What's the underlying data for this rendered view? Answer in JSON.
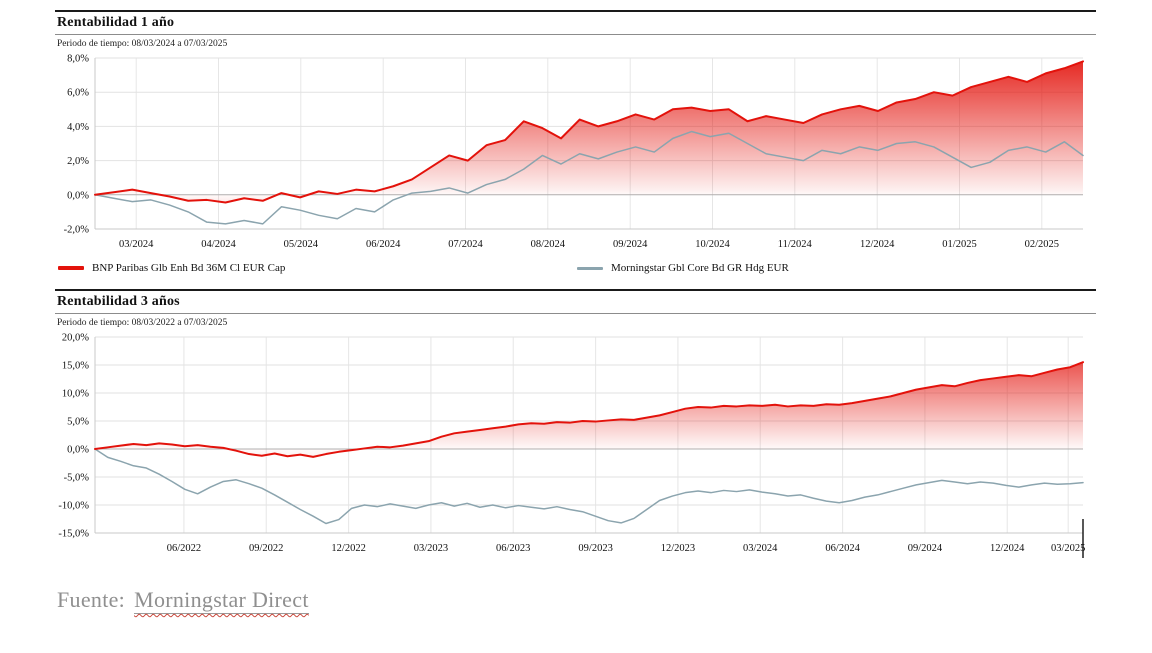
{
  "footer": {
    "prefix": "Fuente:",
    "source": "Morningstar Direct"
  },
  "chart_data": [
    {
      "type": "area",
      "title": "Rentabilidad 1 año",
      "subtitle": "Periodo de tiempo: 08/03/2024 a 07/03/2025",
      "ylim": [
        -2,
        8
      ],
      "grid": true,
      "legend_position": "below",
      "end_marker": false,
      "y_ticks": [
        {
          "v": 8,
          "label": "8,0%"
        },
        {
          "v": 6,
          "label": "6,0%"
        },
        {
          "v": 4,
          "label": "4,0%"
        },
        {
          "v": 2,
          "label": "2,0%"
        },
        {
          "v": 0,
          "label": "0,0%"
        },
        {
          "v": -2,
          "label": "-2,0%"
        }
      ],
      "x_ticks": [
        {
          "f": 0.0417,
          "label": "03/2024"
        },
        {
          "f": 0.125,
          "label": "04/2024"
        },
        {
          "f": 0.2083,
          "label": "05/2024"
        },
        {
          "f": 0.2917,
          "label": "06/2024"
        },
        {
          "f": 0.375,
          "label": "07/2024"
        },
        {
          "f": 0.4583,
          "label": "08/2024"
        },
        {
          "f": 0.5417,
          "label": "09/2024"
        },
        {
          "f": 0.625,
          "label": "10/2024"
        },
        {
          "f": 0.7083,
          "label": "11/2024"
        },
        {
          "f": 0.7917,
          "label": "12/2024"
        },
        {
          "f": 0.875,
          "label": "01/2025"
        },
        {
          "f": 0.9583,
          "label": "02/2025"
        }
      ],
      "series": [
        {
          "name": "BNP Paribas Glb Enh Bd 36M Cl EUR Cap",
          "color": "#e3120b",
          "fill": true,
          "width": 2,
          "values": [
            0.0,
            0.15,
            0.3,
            0.1,
            -0.1,
            -0.35,
            -0.3,
            -0.45,
            -0.2,
            -0.35,
            0.1,
            -0.15,
            0.2,
            0.05,
            0.3,
            0.2,
            0.5,
            0.9,
            1.6,
            2.3,
            2.0,
            2.9,
            3.2,
            4.3,
            3.9,
            3.3,
            4.4,
            4.0,
            4.3,
            4.7,
            4.4,
            5.0,
            5.1,
            4.9,
            5.0,
            4.3,
            4.6,
            4.4,
            4.2,
            4.7,
            5.0,
            5.2,
            4.9,
            5.4,
            5.6,
            6.0,
            5.8,
            6.3,
            6.6,
            6.9,
            6.6,
            7.1,
            7.4,
            7.8
          ]
        },
        {
          "name": "Morningstar Gbl Core Bd GR Hdg EUR",
          "color": "#8ba4ae",
          "fill": false,
          "width": 1.5,
          "values": [
            0.0,
            -0.2,
            -0.4,
            -0.3,
            -0.6,
            -1.0,
            -1.6,
            -1.7,
            -1.5,
            -1.7,
            -0.7,
            -0.9,
            -1.2,
            -1.4,
            -0.8,
            -1.0,
            -0.3,
            0.1,
            0.2,
            0.4,
            0.1,
            0.6,
            0.9,
            1.5,
            2.3,
            1.8,
            2.4,
            2.1,
            2.5,
            2.8,
            2.5,
            3.3,
            3.7,
            3.4,
            3.6,
            3.0,
            2.4,
            2.2,
            2.0,
            2.6,
            2.4,
            2.8,
            2.6,
            3.0,
            3.1,
            2.8,
            2.2,
            1.6,
            1.9,
            2.6,
            2.8,
            2.5,
            3.1,
            2.3
          ]
        }
      ]
    },
    {
      "type": "area",
      "title": "Rentabilidad 3 años",
      "subtitle": "Periodo de tiempo: 08/03/2022 a 07/03/2025",
      "ylim": [
        -15,
        20
      ],
      "grid": true,
      "legend_position": "none",
      "end_marker": true,
      "y_ticks": [
        {
          "v": 20,
          "label": "20,0%"
        },
        {
          "v": 15,
          "label": "15,0%"
        },
        {
          "v": 10,
          "label": "10,0%"
        },
        {
          "v": 5,
          "label": "5,0%"
        },
        {
          "v": 0,
          "label": "0,0%"
        },
        {
          "v": -5,
          "label": "-5,0%"
        },
        {
          "v": -10,
          "label": "-10,0%"
        },
        {
          "v": -15,
          "label": "-15,0%"
        }
      ],
      "x_ticks": [
        {
          "f": 0.09,
          "label": "06/2022"
        },
        {
          "f": 0.1733,
          "label": "09/2022"
        },
        {
          "f": 0.2567,
          "label": "12/2022"
        },
        {
          "f": 0.34,
          "label": "03/2023"
        },
        {
          "f": 0.4233,
          "label": "06/2023"
        },
        {
          "f": 0.5067,
          "label": "09/2023"
        },
        {
          "f": 0.59,
          "label": "12/2023"
        },
        {
          "f": 0.6733,
          "label": "03/2024"
        },
        {
          "f": 0.7567,
          "label": "06/2024"
        },
        {
          "f": 0.84,
          "label": "09/2024"
        },
        {
          "f": 0.9233,
          "label": "12/2024"
        },
        {
          "f": 0.985,
          "label": "03/2025"
        }
      ],
      "series": [
        {
          "name": "BNP Paribas Glb Enh Bd 36M Cl EUR Cap",
          "color": "#e3120b",
          "fill": true,
          "width": 2,
          "values": [
            0.0,
            0.3,
            0.6,
            0.9,
            0.7,
            1.0,
            0.8,
            0.5,
            0.7,
            0.4,
            0.2,
            -0.3,
            -0.9,
            -1.2,
            -0.8,
            -1.3,
            -1.0,
            -1.4,
            -0.9,
            -0.5,
            -0.2,
            0.1,
            0.4,
            0.3,
            0.6,
            1.0,
            1.4,
            2.2,
            2.8,
            3.1,
            3.4,
            3.7,
            4.0,
            4.4,
            4.6,
            4.5,
            4.8,
            4.7,
            5.0,
            4.9,
            5.1,
            5.3,
            5.2,
            5.6,
            6.0,
            6.6,
            7.2,
            7.5,
            7.4,
            7.7,
            7.6,
            7.8,
            7.7,
            7.9,
            7.6,
            7.8,
            7.7,
            8.0,
            7.9,
            8.2,
            8.6,
            9.0,
            9.4,
            10.0,
            10.6,
            11.0,
            11.4,
            11.2,
            11.8,
            12.3,
            12.6,
            12.9,
            13.2,
            13.0,
            13.6,
            14.2,
            14.6,
            15.5
          ]
        },
        {
          "name": "Morningstar Gbl Core Bd GR Hdg EUR",
          "color": "#8ba4ae",
          "fill": false,
          "width": 1.5,
          "values": [
            0.0,
            -1.5,
            -2.2,
            -3.0,
            -3.4,
            -4.5,
            -5.8,
            -7.2,
            -8.0,
            -6.8,
            -5.8,
            -5.5,
            -6.2,
            -7.0,
            -8.2,
            -9.5,
            -10.8,
            -12.0,
            -13.3,
            -12.6,
            -10.6,
            -10.0,
            -10.3,
            -9.8,
            -10.2,
            -10.6,
            -10.0,
            -9.6,
            -10.2,
            -9.7,
            -10.4,
            -10.0,
            -10.5,
            -10.1,
            -10.4,
            -10.7,
            -10.3,
            -10.8,
            -11.2,
            -12.0,
            -12.8,
            -13.2,
            -12.4,
            -10.8,
            -9.2,
            -8.4,
            -7.8,
            -7.5,
            -7.8,
            -7.4,
            -7.6,
            -7.3,
            -7.7,
            -8.0,
            -8.4,
            -8.2,
            -8.8,
            -9.3,
            -9.6,
            -9.2,
            -8.6,
            -8.2,
            -7.6,
            -7.0,
            -6.4,
            -6.0,
            -5.6,
            -5.9,
            -6.2,
            -5.9,
            -6.1,
            -6.5,
            -6.8,
            -6.4,
            -6.1,
            -6.3,
            -6.2,
            -6.0
          ]
        }
      ]
    }
  ]
}
